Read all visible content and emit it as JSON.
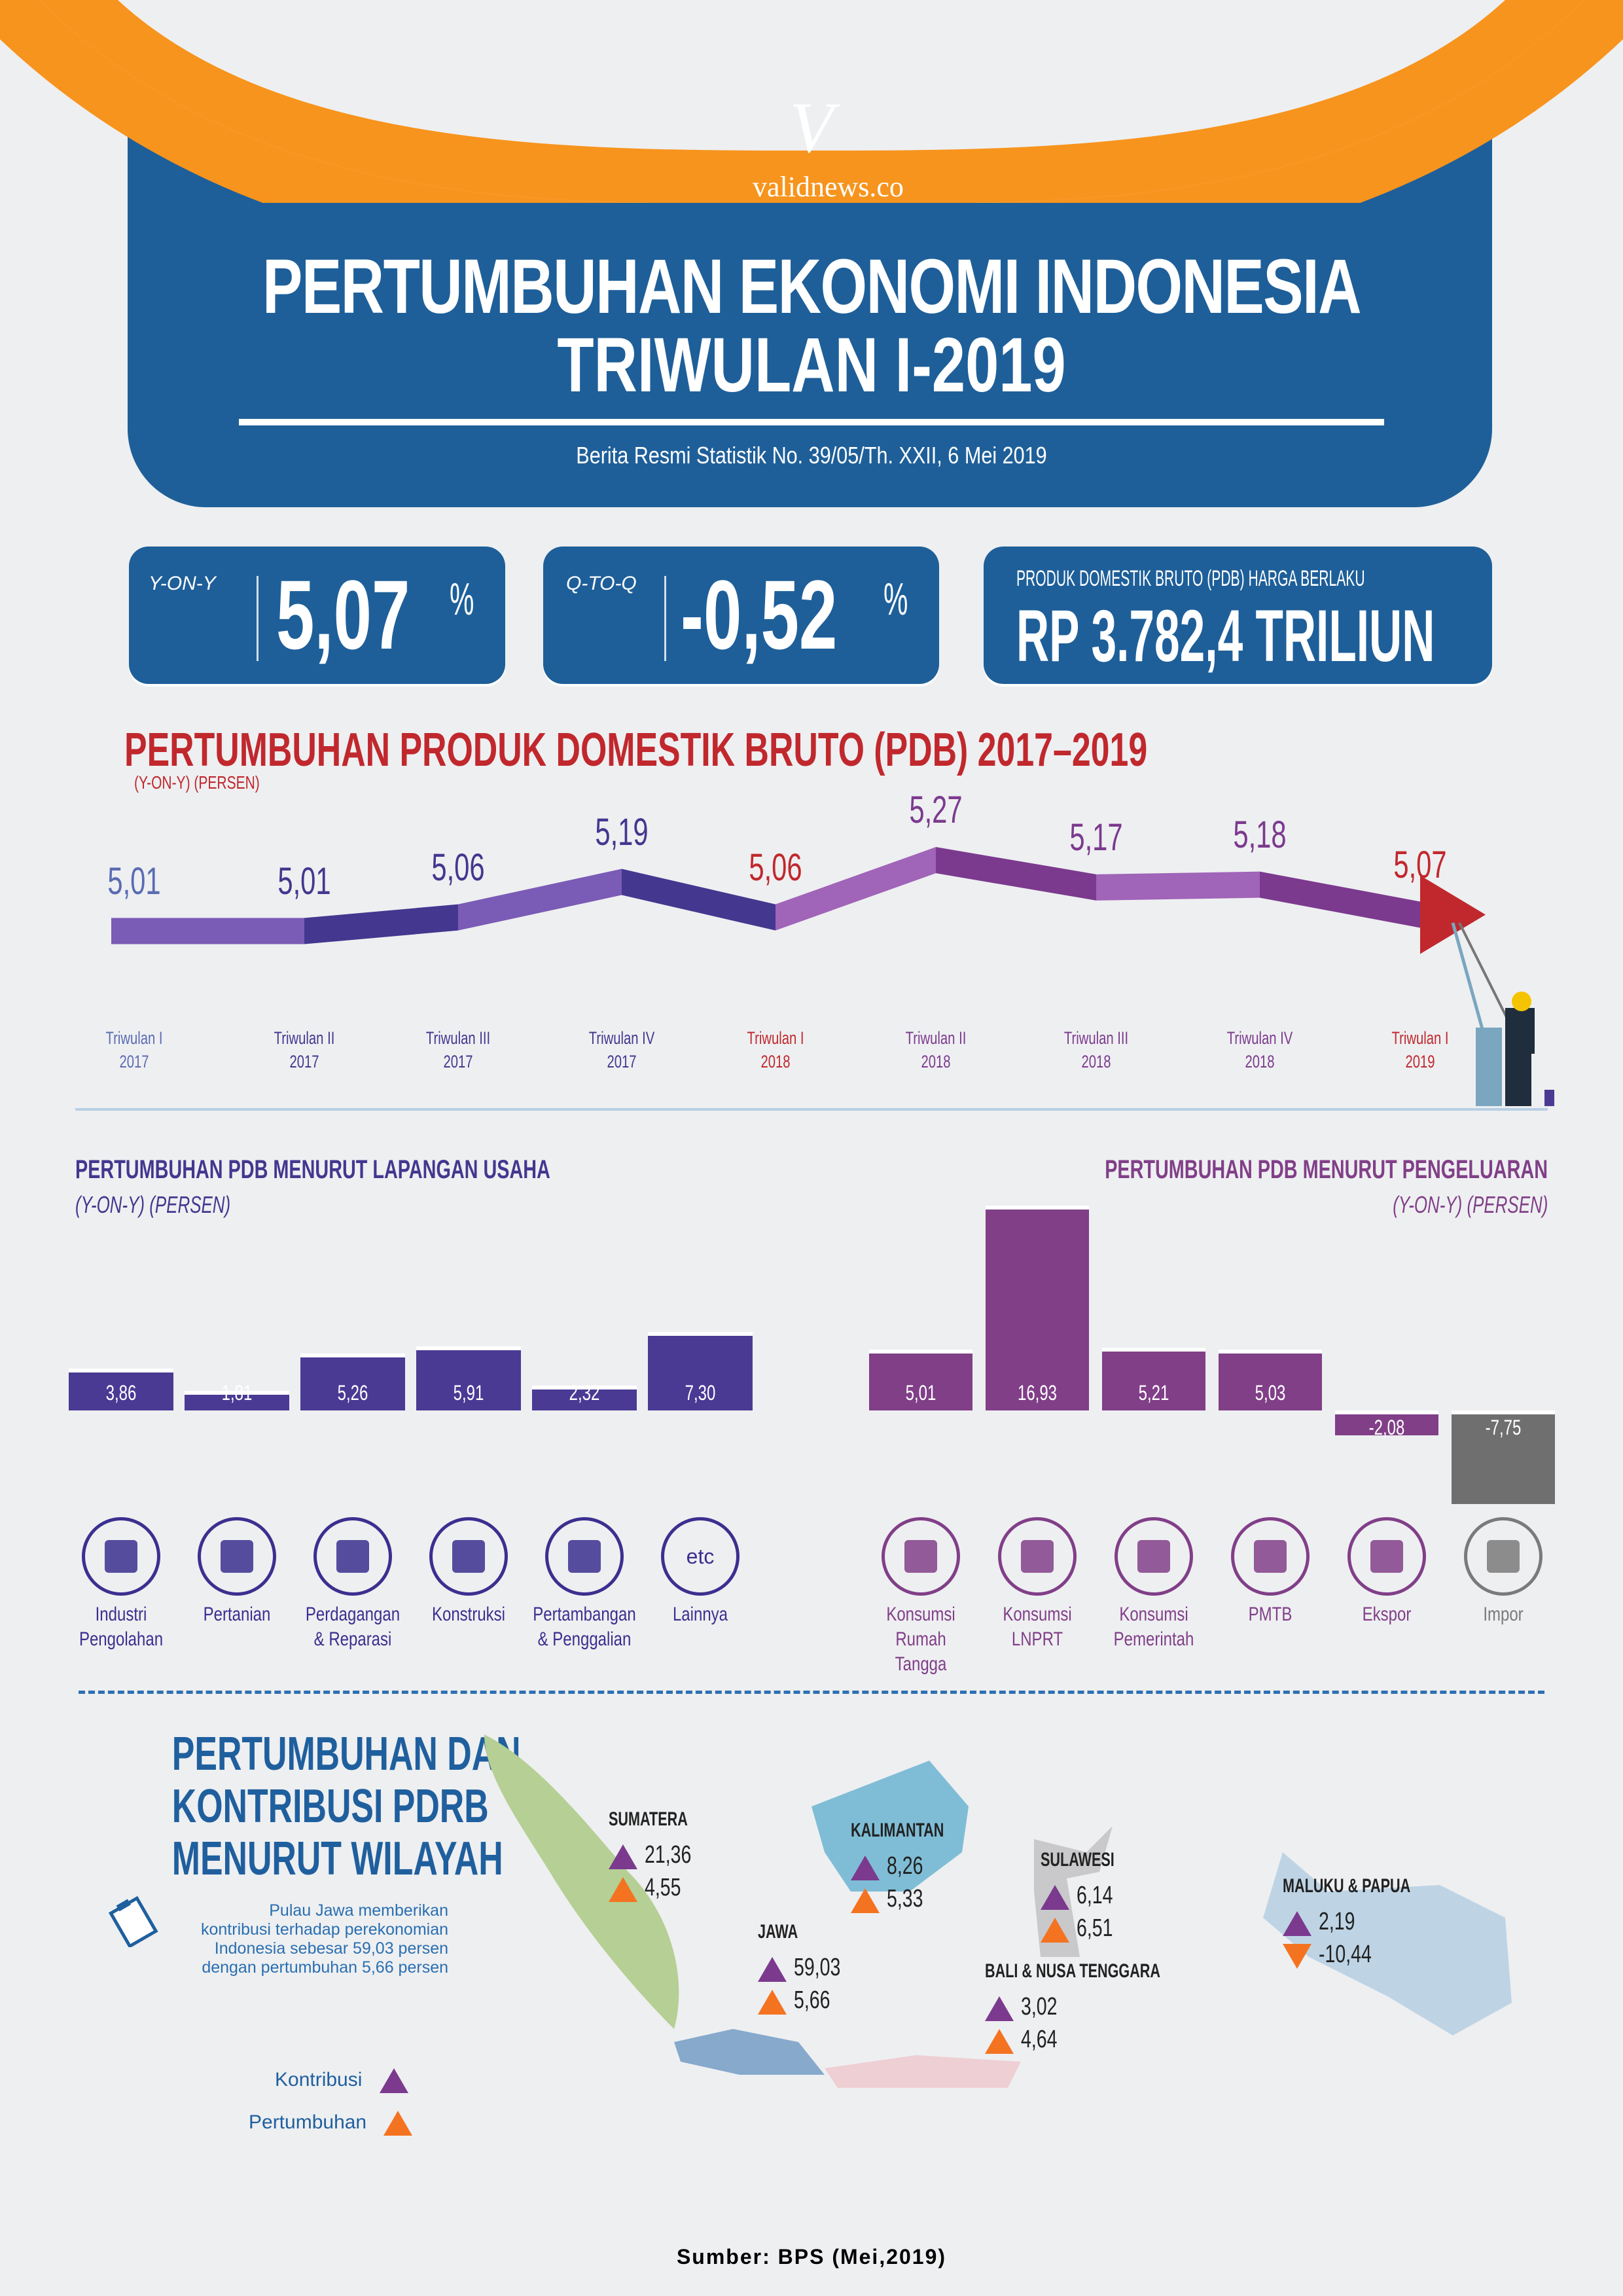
{
  "brand": {
    "site": "validnews.co",
    "logo_glyph": "V"
  },
  "header": {
    "title_line1": "PERTUMBUHAN EKONOMI INDONESIA",
    "title_line2": "TRIWULAN I-2019",
    "subtitle": "Berita Resmi Statistik No. 39/05/Th. XXII, 6 Mei 2019"
  },
  "kpis": {
    "yoy": {
      "label": "Y-ON-Y",
      "value": "5,07",
      "unit": "%"
    },
    "qtq": {
      "label": "Q-TO-Q",
      "value": "-0,52",
      "unit": "%"
    },
    "pdb": {
      "label": "PRODUK DOMESTIK BRUTO (PDB) HARGA BERLAKU",
      "value": "RP 3.782,4 TRILIUN"
    }
  },
  "chart_data": [
    {
      "type": "line",
      "title": "PERTUMBUHAN PRODUK DOMESTIK BRUTO (PDB) 2017–2019",
      "subtitle": "(Y-ON-Y) (PERSEN)",
      "categories": [
        {
          "line1": "Triwulan I",
          "line2": "2017"
        },
        {
          "line1": "Triwulan II",
          "line2": "2017"
        },
        {
          "line1": "Triwulan III",
          "line2": "2017"
        },
        {
          "line1": "Triwulan IV",
          "line2": "2017"
        },
        {
          "line1": "Triwulan I",
          "line2": "2018"
        },
        {
          "line1": "Triwulan II",
          "line2": "2018"
        },
        {
          "line1": "Triwulan III",
          "line2": "2018"
        },
        {
          "line1": "Triwulan IV",
          "line2": "2018"
        },
        {
          "line1": "Triwulan I",
          "line2": "2019"
        }
      ],
      "values": [
        5.01,
        5.01,
        5.06,
        5.19,
        5.06,
        5.27,
        5.17,
        5.18,
        5.07
      ],
      "labels": [
        "5,01",
        "5,01",
        "5,06",
        "5,19",
        "5,06",
        "5,27",
        "5,17",
        "5,18",
        "5,07"
      ],
      "colors": [
        "#5a6bb3",
        "#43378f",
        "#43378f",
        "#43378f",
        "#c0282d",
        "#7b3a8e",
        "#7b3a8e",
        "#7b3a8e",
        "#c0282d"
      ],
      "ylim": [
        4.8,
        5.4
      ],
      "grid": false
    },
    {
      "type": "bar",
      "title": "PERTUMBUHAN PDB MENURUT LAPANGAN USAHA",
      "subtitle": "(Y-ON-Y) (PERSEN)",
      "categories": [
        "Industri Pengolahan",
        "Pertanian",
        "Perdagangan & Reparasi",
        "Konstruksi",
        "Pertambangan & Penggalian",
        "Lainnya"
      ],
      "values": [
        3.86,
        1.81,
        5.26,
        5.91,
        2.32,
        7.3
      ],
      "labels": [
        "3,86",
        "1,81",
        "5,26",
        "5,91",
        "2,32",
        "7,30"
      ],
      "color": "#4a3a94"
    },
    {
      "type": "bar",
      "title": "PERTUMBUHAN PDB MENURUT PENGELUARAN",
      "subtitle": "(Y-ON-Y) (PERSEN)",
      "categories": [
        "Konsumsi Rumah Tangga",
        "Konsumsi LNPRT",
        "Konsumsi Pemerintah",
        "PMTB",
        "Ekspor",
        "Impor"
      ],
      "values": [
        5.01,
        16.93,
        5.21,
        5.03,
        -2.08,
        -7.75
      ],
      "labels": [
        "5,01",
        "16,93",
        "5,21",
        "5,03",
        "-2,08",
        "-7,75"
      ],
      "colors": [
        "#813f88",
        "#813f88",
        "#813f88",
        "#813f88",
        "#813f88",
        "#6f6f70"
      ]
    }
  ],
  "icons_usaha": [
    {
      "icon": "factory-icon",
      "line1": "Industri",
      "line2": "Pengolahan"
    },
    {
      "icon": "leaf-icon",
      "line1": "Pertanian",
      "line2": ""
    },
    {
      "icon": "trade-icon",
      "line1": "Perdagangan",
      "line2": "& Reparasi"
    },
    {
      "icon": "crane-icon",
      "line1": "Konstruksi",
      "line2": ""
    },
    {
      "icon": "oil-pump-icon",
      "line1": "Pertambangan",
      "line2": "& Penggalian"
    },
    {
      "icon": "etc-icon",
      "glyph": "etc",
      "line1": "Lainnya",
      "line2": ""
    }
  ],
  "icons_pengeluaran": [
    {
      "icon": "shopping-scooter-icon",
      "line1": "Konsumsi",
      "line2": "Rumah Tangga"
    },
    {
      "icon": "person-icon",
      "line1": "Konsumsi",
      "line2": "LNPRT"
    },
    {
      "icon": "government-building-icon",
      "line1": "Konsumsi",
      "line2": "Pemerintah"
    },
    {
      "icon": "money-stack-icon",
      "line1": "PMTB",
      "line2": ""
    },
    {
      "icon": "ship-export-icon",
      "line1": "Ekspor",
      "line2": ""
    },
    {
      "icon": "ship-import-icon",
      "line1": "Impor",
      "line2": ""
    }
  ],
  "regional": {
    "title_line1": "PERTUMBUHAN DAN",
    "title_line2": "KONTRIBUSI PDRB",
    "title_line3": "MENURUT WILAYAH",
    "note": "Pulau Jawa memberikan kontribusi terhadap perekonomian Indonesia sebesar 59,03 persen dengan pertumbuhan 5,66 persen",
    "legend": [
      {
        "label": "Kontribusi",
        "color": "#7b3a8e"
      },
      {
        "label": "Pertumbuhan",
        "color": "#f47321"
      }
    ],
    "regions": [
      {
        "name": "SUMATERA",
        "kontribusi": "21,36",
        "pertumbuhan": "4,55",
        "growth_dir": "up",
        "color": "#b5cf94"
      },
      {
        "name": "KALIMANTAN",
        "kontribusi": "8,26",
        "pertumbuhan": "5,33",
        "growth_dir": "up",
        "color": "#7fbdd6"
      },
      {
        "name": "SULAWESI",
        "kontribusi": "6,14",
        "pertumbuhan": "6,51",
        "growth_dir": "up",
        "color": "#c9c9cb"
      },
      {
        "name": "MALUKU & PAPUA",
        "kontribusi": "2,19",
        "pertumbuhan": "-10,44",
        "growth_dir": "down",
        "color": "#bed4e5"
      },
      {
        "name": "JAWA",
        "kontribusi": "59,03",
        "pertumbuhan": "5,66",
        "growth_dir": "up",
        "color": "#86a9cc"
      },
      {
        "name": "BALI & NUSA TENGGARA",
        "kontribusi": "3,02",
        "pertumbuhan": "4,64",
        "growth_dir": "up",
        "color": "#eecfd3"
      }
    ]
  },
  "source": "Sumber: BPS (Mei,2019)",
  "colors": {
    "brand_blue": "#1e5f99",
    "orange": "#f7941d",
    "red": "#c0282d",
    "indigo": "#4a3a94",
    "purple": "#813f88",
    "gray": "#6f6f70"
  }
}
